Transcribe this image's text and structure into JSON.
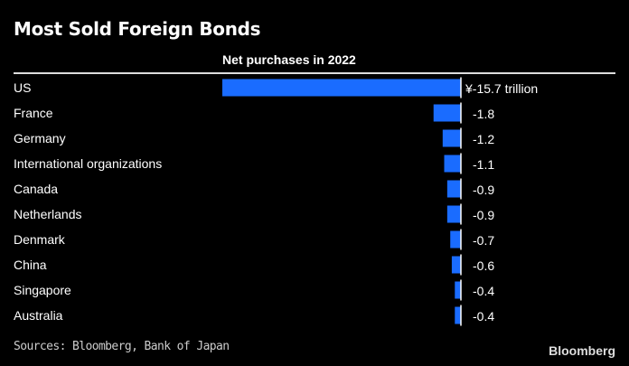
{
  "chart_data": {
    "type": "bar",
    "orientation": "horizontal",
    "title": "Most Sold Foreign Bonds",
    "subtitle": "Net purchases in 2022",
    "categories": [
      "US",
      "France",
      "Germany",
      "International organizations",
      "Canada",
      "Netherlands",
      "Denmark",
      "China",
      "Singapore",
      "Australia"
    ],
    "values": [
      -15.7,
      -1.8,
      -1.2,
      -1.1,
      -0.9,
      -0.9,
      -0.7,
      -0.6,
      -0.4,
      -0.4
    ],
    "value_labels": [
      "¥-15.7 trillion",
      "-1.8",
      "-1.2",
      "-1.1",
      "-0.9",
      "-0.9",
      "-0.7",
      "-0.6",
      "-0.4",
      "-0.4"
    ],
    "unit": "¥ trillion",
    "xlim": [
      -15.7,
      0
    ],
    "grid": false,
    "bar_color": "#1a6cff",
    "background": "#000000"
  },
  "footer": {
    "source": "Sources: Bloomberg, Bank of Japan",
    "logo": "Bloomberg"
  }
}
